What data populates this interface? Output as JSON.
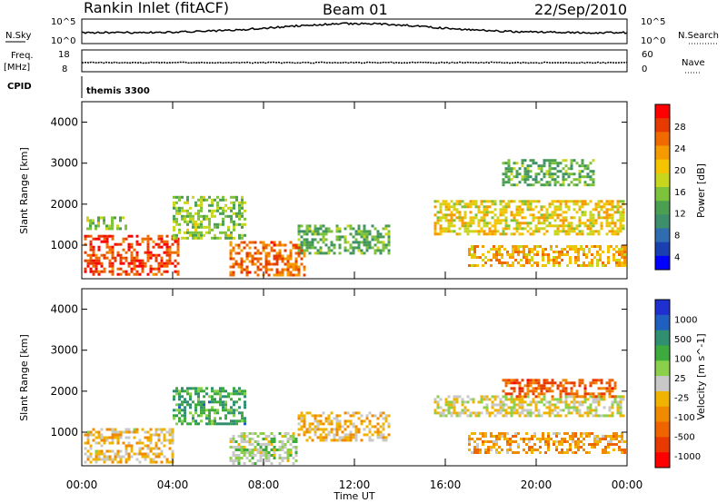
{
  "header": {
    "station": "Rankin Inlet (fitACF)",
    "beam": "Beam 01",
    "date": "22/Sep/2010"
  },
  "top_panels": {
    "nsky_label": "N.Sky",
    "nsky_ticks": [
      "10^5",
      "10^0"
    ],
    "nsearch_label": "N.Search",
    "nsearch_ticks": [
      "10^5",
      "10^0"
    ],
    "freq_label": "Freq.",
    "freq_unit": "[MHz]",
    "freq_ticks": [
      "18",
      "8"
    ],
    "nave_label": "Nave",
    "nave_ticks": [
      "60",
      "0"
    ],
    "cpid_label": "CPID",
    "cpid_value": "themis 3300"
  },
  "axes": {
    "xlabel": "Time UT",
    "xticks": [
      "00:00",
      "04:00",
      "08:00",
      "12:00",
      "16:00",
      "20:00",
      "00:00"
    ],
    "ylabel_power": "Slant Range [km]",
    "ylabel_velocity": "Slant Range [km]",
    "yticks": [
      "4000",
      "3000",
      "2000",
      "1000"
    ]
  },
  "colorbars": {
    "power_label": "Power [dB]",
    "power_ticks": [
      "28",
      "24",
      "20",
      "16",
      "12",
      "8",
      "4"
    ],
    "power_colors": [
      "#0000ff",
      "#1a3fb0",
      "#2f6db0",
      "#3c8f6a",
      "#4aa050",
      "#7cc23a",
      "#c8d61e",
      "#f5c400",
      "#f59a00",
      "#f06a00",
      "#e63a00",
      "#ff0000"
    ],
    "velocity_label": "Velocity [m s^-1]",
    "velocity_ticks": [
      "1000",
      "500",
      "100",
      "25",
      "-25",
      "-100",
      "-500",
      "-1000"
    ],
    "velocity_colors": [
      "#1f2fd0",
      "#1f5fc0",
      "#2f8f70",
      "#3caa3c",
      "#8ad04a",
      "#c8c8c8",
      "#f0b400",
      "#f08a00",
      "#f06400",
      "#e83a00",
      "#ff0000"
    ]
  },
  "chart_data": [
    {
      "type": "heatmap",
      "title": "Power",
      "xlabel": "Time UT",
      "ylabel": "Slant Range [km]",
      "xlim": [
        0,
        24
      ],
      "ylim": [
        180,
        4500
      ],
      "zlabel": "Power [dB]",
      "zlim": [
        0,
        30
      ],
      "patches": [
        {
          "t0": 0.1,
          "t1": 4.2,
          "r0": 300,
          "r1": 1250,
          "v": 26
        },
        {
          "t0": 0.2,
          "t1": 2.0,
          "r0": 1400,
          "r1": 1700,
          "v": 14
        },
        {
          "t0": 4.0,
          "t1": 7.2,
          "r0": 1200,
          "r1": 2200,
          "v": 14
        },
        {
          "t0": 6.5,
          "t1": 9.8,
          "r0": 250,
          "r1": 1100,
          "v": 24
        },
        {
          "t0": 9.5,
          "t1": 13.5,
          "r0": 800,
          "r1": 1500,
          "v": 12
        },
        {
          "t0": 15.5,
          "t1": 23.9,
          "r0": 1300,
          "r1": 2100,
          "v": 18
        },
        {
          "t0": 17.0,
          "t1": 23.9,
          "r0": 500,
          "r1": 1000,
          "v": 20
        },
        {
          "t0": 18.5,
          "t1": 22.5,
          "r0": 2500,
          "r1": 3100,
          "v": 12
        }
      ]
    },
    {
      "type": "heatmap",
      "title": "Velocity",
      "xlabel": "Time UT",
      "ylabel": "Slant Range [km]",
      "xlim": [
        0,
        24
      ],
      "ylim": [
        180,
        4500
      ],
      "zlabel": "Velocity [m s^-1]",
      "zlim": [
        -1000,
        1000
      ],
      "patches": [
        {
          "t0": 0.1,
          "t1": 4.0,
          "r0": 300,
          "r1": 1100,
          "v": -150
        },
        {
          "t0": 4.0,
          "t1": 7.2,
          "r0": 1200,
          "r1": 2100,
          "v": 400
        },
        {
          "t0": 6.5,
          "t1": 9.5,
          "r0": 250,
          "r1": 1000,
          "v": 100
        },
        {
          "t0": 9.5,
          "t1": 13.5,
          "r0": 800,
          "r1": 1500,
          "v": -200
        },
        {
          "t0": 15.5,
          "t1": 23.9,
          "r0": 1400,
          "r1": 1900,
          "v": 0
        },
        {
          "t0": 17.0,
          "t1": 23.9,
          "r0": 500,
          "r1": 1000,
          "v": -300
        },
        {
          "t0": 18.5,
          "t1": 23.5,
          "r0": 1900,
          "r1": 2300,
          "v": -600
        }
      ]
    }
  ]
}
